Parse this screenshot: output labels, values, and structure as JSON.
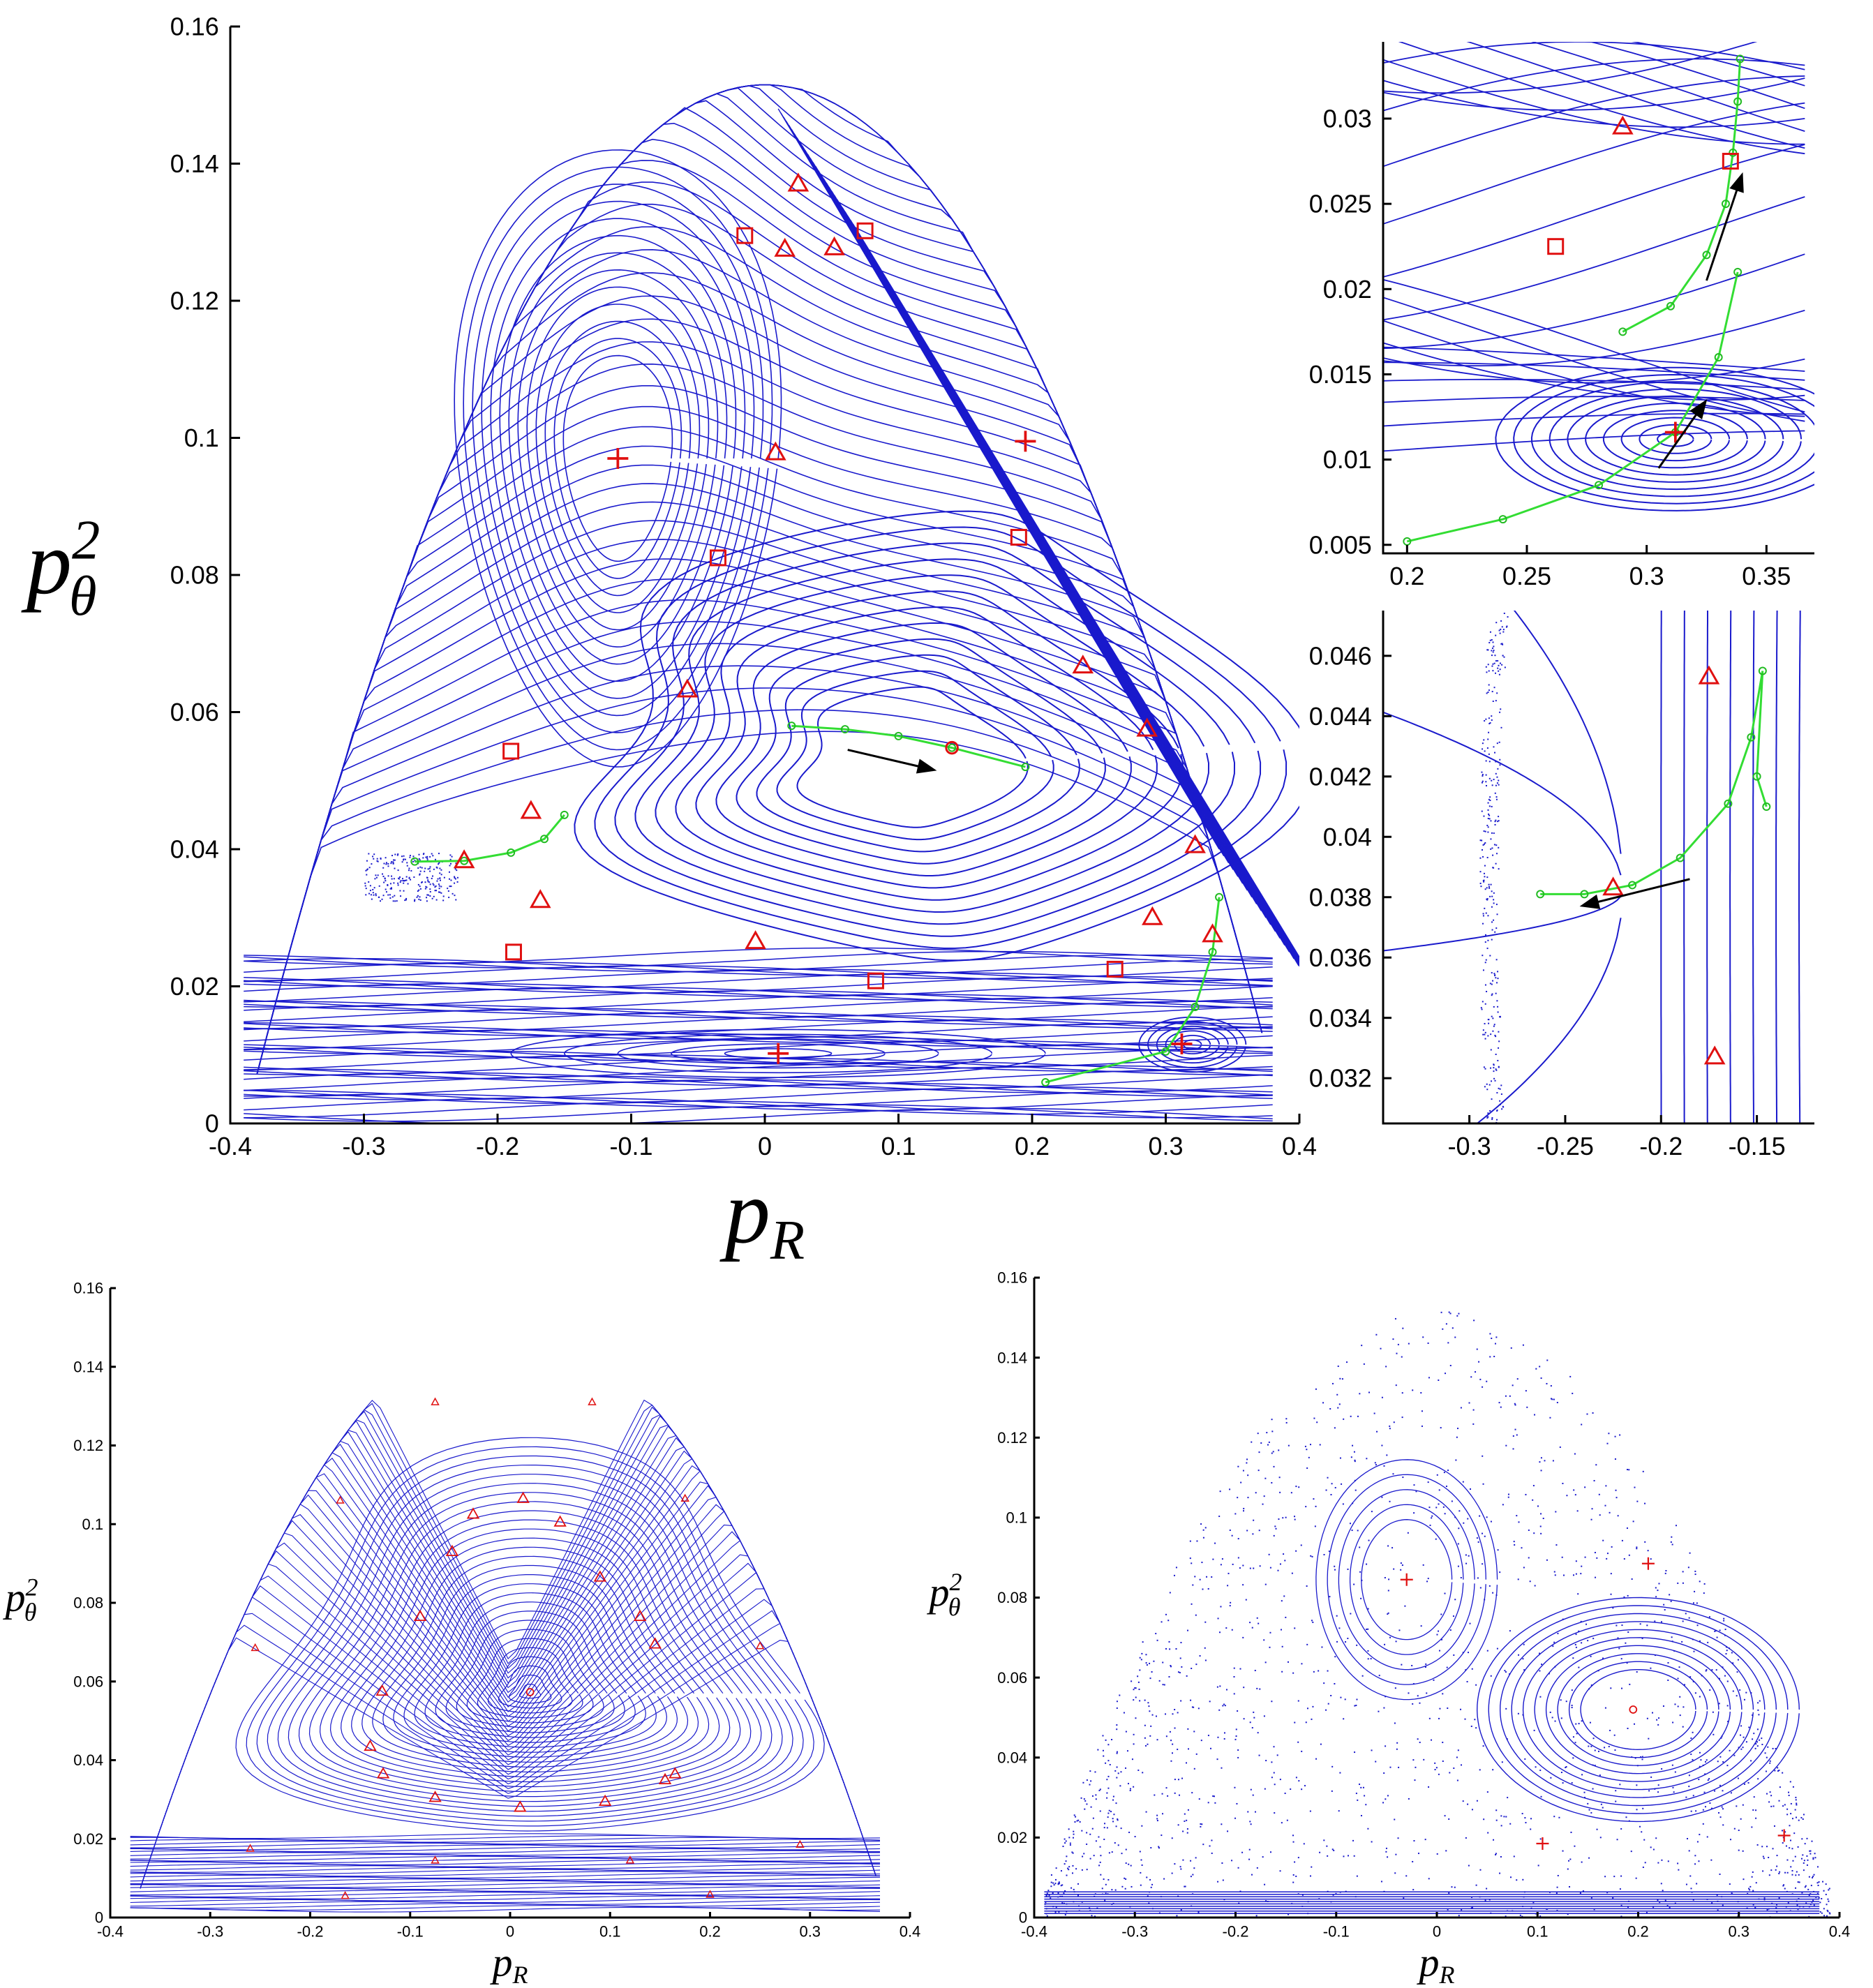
{
  "chart_data": [
    {
      "id": "main",
      "type": "scatter",
      "title": "",
      "xlabel": "p_R",
      "ylabel": "p_θ^2",
      "xlim": [
        -0.4,
        0.4
      ],
      "ylim": [
        0,
        0.16
      ],
      "xticks": [
        "-0.4",
        "-0.3",
        "-0.2",
        "-0.1",
        "0",
        "0.1",
        "0.2",
        "0.3",
        "0.4"
      ],
      "yticks": [
        "0",
        "0.02",
        "0.04",
        "0.06",
        "0.08",
        "0.1",
        "0.12",
        "0.14",
        "0.16"
      ],
      "grid": false,
      "markers": {
        "plus": [
          [
            -0.11,
            0.097
          ],
          [
            0.195,
            0.0995
          ],
          [
            0.01,
            0.0102
          ],
          [
            0.312,
            0.0116
          ]
        ],
        "square": [
          [
            -0.015,
            0.1295
          ],
          [
            0.075,
            0.1302
          ],
          [
            -0.035,
            0.0825
          ],
          [
            0.19,
            0.0855
          ],
          [
            -0.19,
            0.0543
          ],
          [
            -0.188,
            0.025
          ],
          [
            0.083,
            0.0208
          ],
          [
            0.262,
            0.0225
          ]
        ],
        "triangle": [
          [
            0.025,
            0.137
          ],
          [
            0.015,
            0.1275
          ],
          [
            0.052,
            0.1277
          ],
          [
            0.008,
            0.0978
          ],
          [
            -0.058,
            0.0632
          ],
          [
            0.238,
            0.0667
          ],
          [
            0.286,
            0.0575
          ],
          [
            -0.175,
            0.0455
          ],
          [
            -0.168,
            0.0325
          ],
          [
            -0.007,
            0.0265
          ],
          [
            0.29,
            0.03
          ],
          [
            0.322,
            0.0405
          ],
          [
            -0.225,
            0.0383
          ],
          [
            0.335,
            0.0275
          ]
        ],
        "circle": [
          [
            0.14,
            0.0548
          ]
        ]
      },
      "green_path_center": [
        [
          0.02,
          0.058
        ],
        [
          0.06,
          0.0575
        ],
        [
          0.1,
          0.0565
        ],
        [
          0.14,
          0.0548
        ],
        [
          0.195,
          0.052
        ]
      ],
      "green_path_left": [
        [
          -0.262,
          0.0382
        ],
        [
          -0.225,
          0.0383
        ],
        [
          -0.19,
          0.0395
        ],
        [
          -0.165,
          0.0415
        ],
        [
          -0.15,
          0.045
        ]
      ],
      "green_path_right": [
        [
          0.21,
          0.006
        ],
        [
          0.3,
          0.0105
        ],
        [
          0.322,
          0.017
        ],
        [
          0.335,
          0.025
        ],
        [
          0.34,
          0.033
        ]
      ],
      "arrows": [
        {
          "from": [
            0.062,
            0.0545
          ],
          "to": [
            0.128,
            0.0515
          ]
        }
      ]
    },
    {
      "id": "inset-top-right",
      "type": "scatter",
      "title": "",
      "xlabel": "",
      "ylabel": "",
      "xlim": [
        0.19,
        0.37
      ],
      "ylim": [
        0.0045,
        0.0345
      ],
      "xticks": [
        "0.2",
        "0.25",
        "0.3",
        "0.35"
      ],
      "yticks": [
        "0.005",
        "0.01",
        "0.015",
        "0.02",
        "0.025",
        "0.03"
      ],
      "grid": false,
      "markers": {
        "plus": [
          [
            0.312,
            0.0116
          ]
        ],
        "square": [
          [
            0.262,
            0.0225
          ],
          [
            0.335,
            0.0275
          ]
        ],
        "triangle": [
          [
            0.29,
            0.0295
          ]
        ]
      },
      "green_path_1": [
        [
          0.2,
          0.0052
        ],
        [
          0.24,
          0.0065
        ],
        [
          0.28,
          0.0085
        ],
        [
          0.312,
          0.0116
        ],
        [
          0.33,
          0.016
        ],
        [
          0.338,
          0.021
        ]
      ],
      "green_path_2": [
        [
          0.29,
          0.0175
        ],
        [
          0.31,
          0.019
        ],
        [
          0.325,
          0.022
        ],
        [
          0.333,
          0.025
        ],
        [
          0.336,
          0.028
        ],
        [
          0.338,
          0.031
        ],
        [
          0.339,
          0.0335
        ]
      ],
      "arrows": [
        {
          "from": [
            0.305,
            0.0095
          ],
          "to": [
            0.325,
            0.0135
          ]
        },
        {
          "from": [
            0.325,
            0.0205
          ],
          "to": [
            0.34,
            0.0268
          ]
        }
      ]
    },
    {
      "id": "inset-bottom-right",
      "type": "scatter",
      "title": "",
      "xlabel": "",
      "ylabel": "",
      "xlim": [
        -0.345,
        -0.12
      ],
      "ylim": [
        0.0305,
        0.0475
      ],
      "xticks": [
        "-0.3",
        "-0.25",
        "-0.2",
        "-0.15"
      ],
      "yticks": [
        "0.032",
        "0.034",
        "0.036",
        "0.038",
        "0.04",
        "0.042",
        "0.044",
        "0.046"
      ],
      "grid": false,
      "markers": {
        "triangle": [
          [
            -0.175,
            0.0453
          ],
          [
            -0.225,
            0.0383
          ],
          [
            -0.172,
            0.0327
          ]
        ]
      },
      "green_path": [
        [
          -0.263,
          0.0381
        ],
        [
          -0.24,
          0.0381
        ],
        [
          -0.215,
          0.0384
        ],
        [
          -0.19,
          0.0393
        ],
        [
          -0.165,
          0.0411
        ],
        [
          -0.153,
          0.0433
        ],
        [
          -0.147,
          0.0455
        ],
        [
          -0.15,
          0.042
        ],
        [
          -0.145,
          0.041
        ]
      ],
      "arrows": [
        {
          "from": [
            -0.185,
            0.0386
          ],
          "to": [
            -0.242,
            0.0377
          ]
        }
      ]
    },
    {
      "id": "bottom-left",
      "type": "scatter",
      "title": "",
      "xlabel": "p_R",
      "ylabel": "p_θ^2",
      "xlim": [
        -0.4,
        0.4
      ],
      "ylim": [
        0,
        0.16
      ],
      "xticks": [
        "-0.4",
        "-0.3",
        "-0.2",
        "-0.1",
        "0",
        "0.1",
        "0.2",
        "0.3",
        "0.4"
      ],
      "yticks": [
        "0",
        "0.02",
        "0.04",
        "0.06",
        "0.08",
        "0.1",
        "0.12",
        "0.14",
        "0.16"
      ],
      "grid": false,
      "markers": {
        "circle": [
          [
            0.02,
            0.0573
          ]
        ],
        "triangle": [
          [
            0.013,
            0.1065
          ],
          [
            -0.037,
            0.1025
          ],
          [
            0.05,
            0.1005
          ],
          [
            -0.058,
            0.093
          ],
          [
            0.09,
            0.0865
          ],
          [
            -0.09,
            0.0765
          ],
          [
            0.13,
            0.0765
          ],
          [
            -0.128,
            0.0575
          ],
          [
            0.145,
            0.0695
          ],
          [
            -0.14,
            0.0435
          ],
          [
            0.165,
            0.0365
          ],
          [
            -0.127,
            0.0365
          ],
          [
            0.155,
            0.035
          ],
          [
            -0.075,
            0.0305
          ],
          [
            0.095,
            0.0295
          ],
          [
            0.01,
            0.028
          ]
        ],
        "small": [
          [
            -0.075,
            0.131
          ],
          [
            0.082,
            0.131
          ],
          [
            -0.17,
            0.106
          ],
          [
            0.175,
            0.1065
          ],
          [
            -0.255,
            0.0685
          ],
          [
            0.25,
            0.069
          ],
          [
            -0.26,
            0.0175
          ],
          [
            0.29,
            0.0185
          ],
          [
            -0.075,
            0.0145
          ],
          [
            0.12,
            0.0145
          ],
          [
            -0.165,
            0.0055
          ],
          [
            0.2,
            0.0058
          ]
        ]
      }
    },
    {
      "id": "bottom-right",
      "type": "scatter",
      "title": "",
      "xlabel": "p_R",
      "ylabel": "p_θ^2",
      "xlim": [
        -0.4,
        0.4
      ],
      "ylim": [
        0,
        0.16
      ],
      "xticks": [
        "-0.4",
        "-0.3",
        "-0.2",
        "-0.1",
        "0",
        "0.1",
        "0.2",
        "0.3",
        "0.4"
      ],
      "yticks": [
        "0",
        "0.02",
        "0.04",
        "0.06",
        "0.08",
        "0.1",
        "0.12",
        "0.14",
        "0.16"
      ],
      "grid": false,
      "markers": {
        "plus": [
          [
            -0.03,
            0.0845
          ],
          [
            0.21,
            0.0885
          ],
          [
            0.105,
            0.0185
          ],
          [
            0.345,
            0.0205
          ]
        ],
        "circle": [
          [
            0.195,
            0.052
          ]
        ]
      }
    }
  ],
  "colors": {
    "orbits": "#1a1acc",
    "markers": "#e01010",
    "continuation": "#33dd33",
    "arrow": "#000000"
  }
}
